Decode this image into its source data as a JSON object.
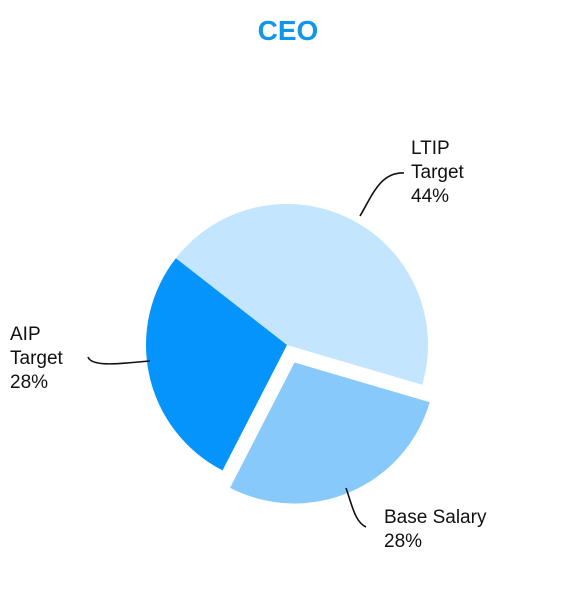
{
  "colors": {
    "title": "#1296e8",
    "ltip": "#c3e5fd",
    "base_salary": "#88c9fb",
    "aip": "#0494fb",
    "leader_line": "#111111",
    "background": "#ffffff"
  },
  "chart_data": {
    "type": "pie",
    "title": "CEO",
    "exploded_slice": "Base Salary",
    "slices": [
      {
        "name_lines": [
          "LTIP",
          "Target"
        ],
        "value": 44,
        "value_label": "44%"
      },
      {
        "name_lines": [
          "Base Salary"
        ],
        "value": 28,
        "value_label": "28%"
      },
      {
        "name_lines": [
          "AIP",
          "Target"
        ],
        "value": 28,
        "value_label": "28%"
      }
    ]
  }
}
